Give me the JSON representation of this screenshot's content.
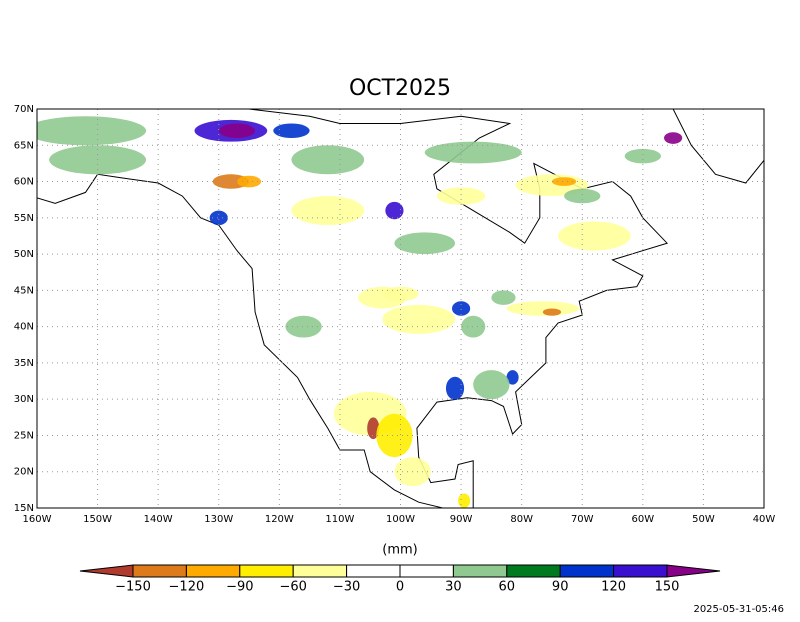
{
  "title": "OCT2025",
  "latitude_labels": [
    "15N",
    "20N",
    "25N",
    "30N",
    "35N",
    "40N",
    "45N",
    "50N",
    "55N",
    "60N",
    "65N",
    "70N"
  ],
  "longitude_labels": [
    "160W",
    "150W",
    "140W",
    "130W",
    "120W",
    "110W",
    "100W",
    "90W",
    "80W",
    "70W",
    "60W",
    "50W",
    "40W"
  ],
  "colorbar": {
    "unit": "(mm)",
    "labels": [
      "−150",
      "−120",
      "−90",
      "−60",
      "−30",
      "0",
      "30",
      "60",
      "90",
      "120",
      "150"
    ],
    "colors": [
      "#b03a2e",
      "#dd7a1a",
      "#ffaa00",
      "#ffee00",
      "#ffff99",
      "#ffffff",
      "#ffffff",
      "#8fc98f",
      "#007a1e",
      "#0033cc",
      "#3a10d0",
      "#880088"
    ]
  },
  "timestamp": "2025-05-31-05:46"
}
